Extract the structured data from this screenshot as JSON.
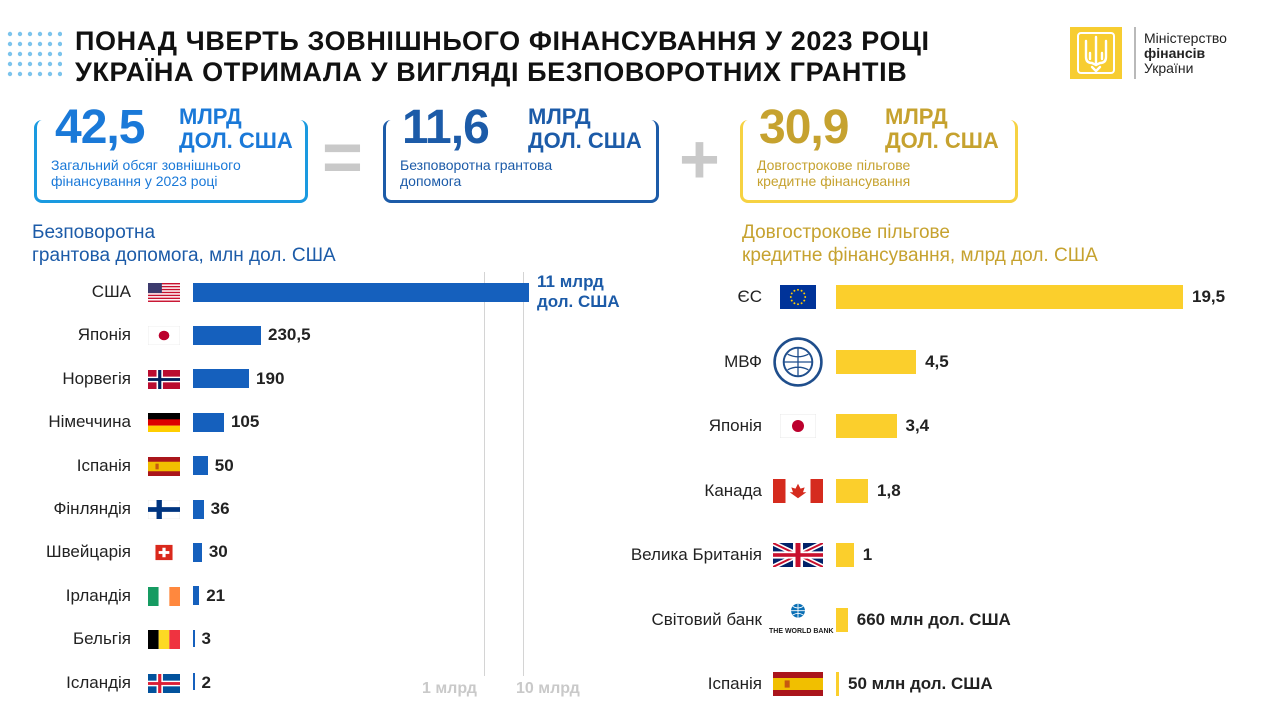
{
  "header": {
    "title_line1": "Понад чверть зовнішнього фінансування у 2023 році",
    "title_line2": "Україна отримала у вигляді безповоротних грантів",
    "logo": {
      "line1": "Міністерство",
      "line2": "фінансів",
      "line3": "України",
      "icon": "trident-icon"
    }
  },
  "summary": {
    "total": {
      "number": "42,5",
      "unit_line1": "МЛРД",
      "unit_line2": "ДОЛ. США",
      "desc_line1": "Загальний обсяг зовнішнього",
      "desc_line2": "фінансування у 2023 році"
    },
    "equals": "=",
    "grants": {
      "number": "11,6",
      "unit_line1": "МЛРД",
      "unit_line2": "ДОЛ. США",
      "desc_line1": "Безповоротна грантова",
      "desc_line2": "допомога"
    },
    "plus": "+",
    "loans": {
      "number": "30,9",
      "unit_line1": "МЛРД",
      "unit_line2": "ДОЛ. США",
      "desc_line1": "Довгострокове пільгове",
      "desc_line2": "кредитне фінансування"
    }
  },
  "colors": {
    "blue": "#1560bd",
    "yellow": "#fbcf2c",
    "gold": "#c6a22f",
    "box_blue": "#1a79d8",
    "box_dark": "#1c5ba8"
  },
  "chart_data": [
    {
      "type": "bar",
      "orientation": "horizontal",
      "title_line1": "Безповоротна",
      "title_line2": "грантова допомога, млн дол. США",
      "categories": [
        "США",
        "Японія",
        "Норвегія",
        "Німеччина",
        "Іспанія",
        "Фінляндія",
        "Швейцарія",
        "Ірландія",
        "Бельгія",
        "Ісландія"
      ],
      "values": [
        11000,
        230.5,
        190,
        105,
        50,
        36,
        30,
        21,
        3,
        2
      ],
      "value_labels": [
        "11 млрд дол. США",
        "230,5",
        "190",
        "105",
        "50",
        "36",
        "30",
        "21",
        "3",
        "2"
      ],
      "first_label_line1": "11 млрд",
      "first_label_line2": "дол. США",
      "flags": [
        "us",
        "jp",
        "no",
        "de",
        "es",
        "fi",
        "ch",
        "ie",
        "be",
        "is"
      ],
      "axis_ticks": [
        {
          "label": "1 млрд",
          "value": 1000
        },
        {
          "label": "10 млрд",
          "value": 10000
        }
      ],
      "scale": "broken"
    },
    {
      "type": "bar",
      "orientation": "horizontal",
      "title_line1": "Довгострокове пільгове",
      "title_line2": "кредитне фінансування, млрд дол. США",
      "categories": [
        "ЄС",
        "МВФ",
        "Японія",
        "Канада",
        "Велика Британія",
        "Світовий банк",
        "Іспанія"
      ],
      "values": [
        19.5,
        4.5,
        3.4,
        1.8,
        1,
        0.66,
        0.05
      ],
      "value_labels": [
        "19,5",
        "4,5",
        "3,4",
        "1,8",
        "1",
        "660 млн дол. США",
        "50 млн дол. США"
      ],
      "flags": [
        "eu",
        "imf",
        "jp",
        "ca",
        "gb",
        "wb",
        "es"
      ],
      "wb_logo_text": "THE WORLD BANK"
    }
  ]
}
